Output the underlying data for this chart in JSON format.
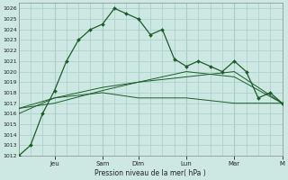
{
  "bg_color": "#cde8e2",
  "grid_color": "#a8cdc7",
  "line_color": "#1a5c28",
  "xlabel": "Pression niveau de la mer( hPa )",
  "ylim": [
    1012,
    1026.5
  ],
  "ytick_min": 1012,
  "ytick_max": 1026,
  "xtick_labels": [
    "Jeu",
    "Sam",
    "Dim",
    "Lun",
    "Mar",
    "M"
  ],
  "xtick_positions": [
    3,
    7,
    10,
    14,
    18,
    22
  ],
  "series1_x": [
    0,
    1,
    2,
    3,
    4,
    5,
    6,
    7,
    8,
    9,
    10,
    11,
    12,
    13,
    14,
    15,
    16,
    17,
    18,
    19,
    20,
    21,
    22
  ],
  "series1_y": [
    1012,
    1013,
    1016,
    1018.2,
    1021,
    1023,
    1024,
    1024.5,
    1026,
    1025.5,
    1025,
    1023.5,
    1024,
    1021.2,
    1020.5,
    1021,
    1020.5,
    1020,
    1021,
    1020,
    1017.5,
    1018,
    1017
  ],
  "series2_x": [
    0,
    3,
    7,
    10,
    14,
    18,
    22
  ],
  "series2_y": [
    1016,
    1017.5,
    1018,
    1017.5,
    1017.5,
    1017,
    1017
  ],
  "series3_x": [
    0,
    3,
    7,
    10,
    14,
    18,
    22
  ],
  "series3_y": [
    1016.5,
    1017.5,
    1018.5,
    1019,
    1019.5,
    1020,
    1017
  ],
  "series4_x": [
    0,
    3,
    7,
    10,
    14,
    18,
    22
  ],
  "series4_y": [
    1016.5,
    1017,
    1018.2,
    1019,
    1020,
    1019.5,
    1017
  ],
  "x_min": 0,
  "x_max": 22,
  "figw": 3.2,
  "figh": 2.0,
  "dpi": 100
}
